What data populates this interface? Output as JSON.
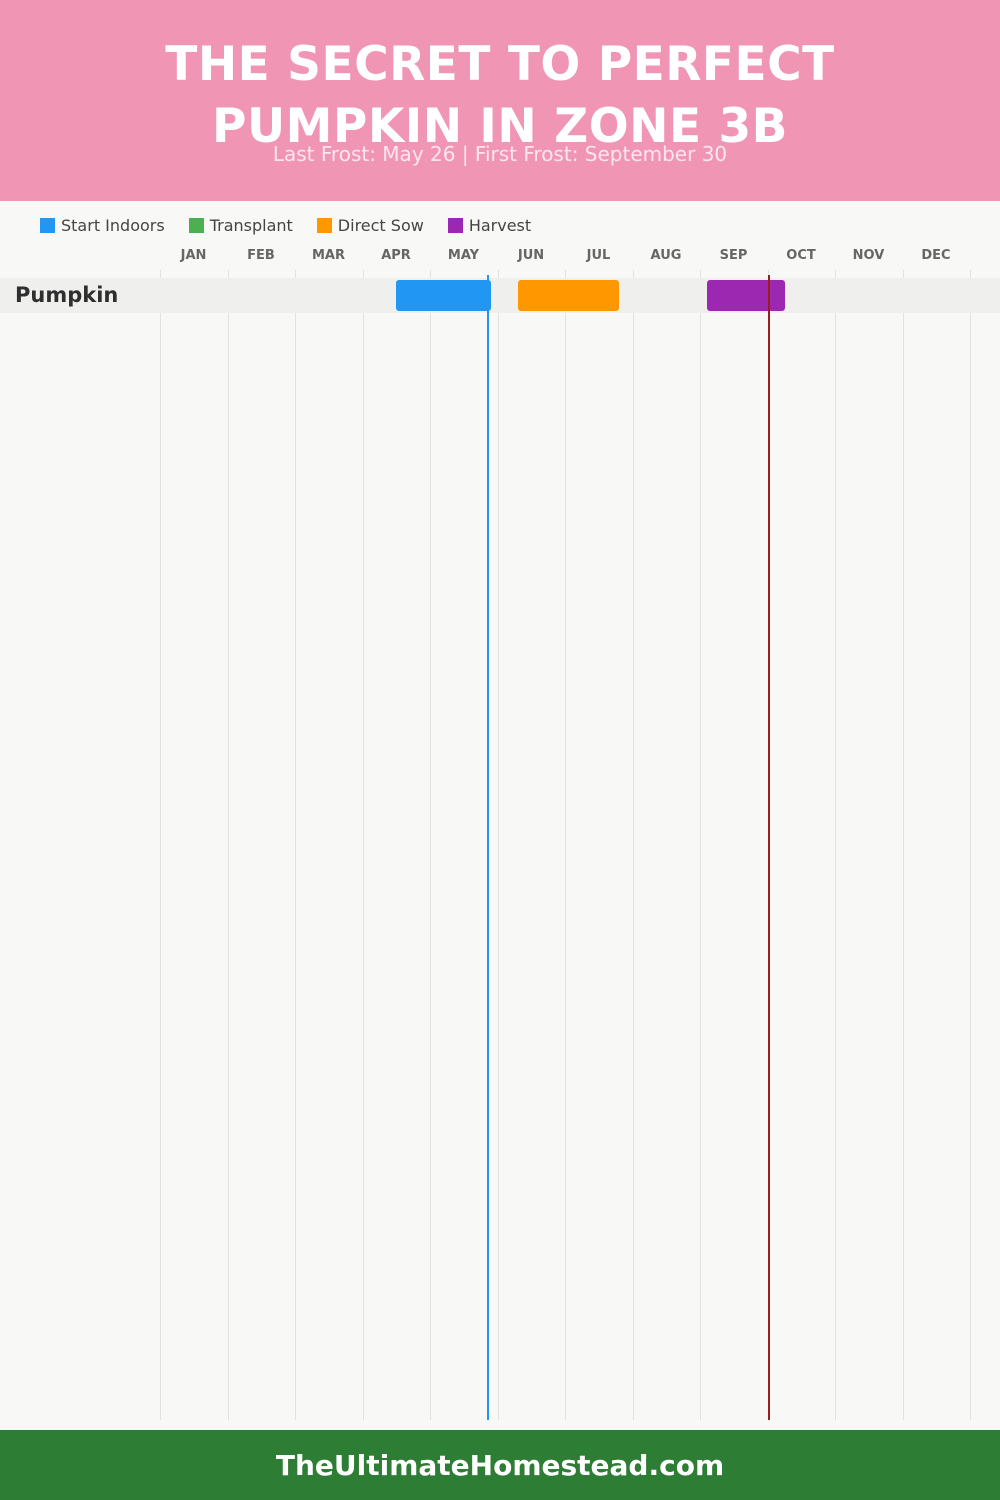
{
  "header": {
    "title_line1": "THE SECRET TO PERFECT",
    "title_line2": "PUMPKIN IN ZONE 3B",
    "subtitle": "Last Frost: May 26 | First Frost: September 30",
    "background_color": "#f096b4"
  },
  "legend": [
    {
      "label": "Start Indoors",
      "color": "#2196f3"
    },
    {
      "label": "Transplant",
      "color": "#4caf50"
    },
    {
      "label": "Direct Sow",
      "color": "#ff9800"
    },
    {
      "label": "Harvest",
      "color": "#9c27b0"
    }
  ],
  "chart_data": {
    "type": "gantt",
    "months": [
      "JAN",
      "FEB",
      "MAR",
      "APR",
      "MAY",
      "JUN",
      "JUL",
      "AUG",
      "SEP",
      "OCT",
      "NOV",
      "DEC"
    ],
    "rows": [
      {
        "crop": "Pumpkin",
        "activities": [
          {
            "activity": "Start Indoors",
            "start_month": 4.5,
            "end_month": 5.9
          },
          {
            "activity": "Direct Sow",
            "start_month": 6.3,
            "end_month": 7.8
          },
          {
            "activity": "Harvest",
            "start_month": 9.1,
            "end_month": 10.25
          }
        ]
      }
    ],
    "frost_lines": [
      {
        "label": "Last Frost: May 26",
        "month": 5.85,
        "color": "#2196f3"
      },
      {
        "label": "First Frost: September 30",
        "month": 10.0,
        "color": "#9b1c1c"
      }
    ]
  },
  "footer": {
    "text": "TheUltimateHomestead.com",
    "background_color": "#2e7d34"
  }
}
